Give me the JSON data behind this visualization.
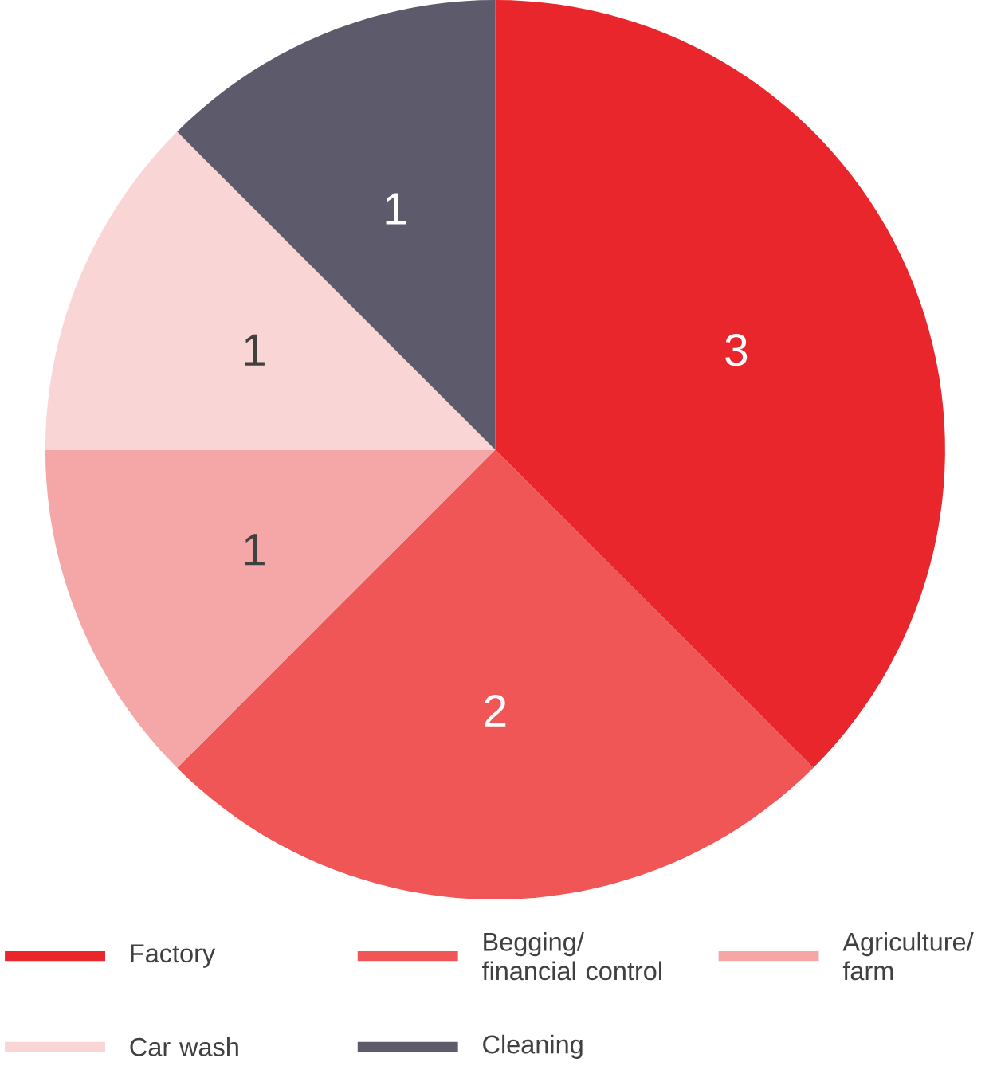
{
  "chart_data": {
    "type": "pie",
    "categories": [
      "Factory",
      "Begging/ financial control",
      "Agriculture/ farm",
      "Car wash",
      "Cleaning"
    ],
    "values": [
      3,
      2,
      1,
      1,
      1
    ],
    "colors": [
      "#e9262b",
      "#ef5655",
      "#f5a7a8",
      "#fad5d6",
      "#5d5a6b"
    ],
    "data_labels": true,
    "legend": "bottom"
  }
}
